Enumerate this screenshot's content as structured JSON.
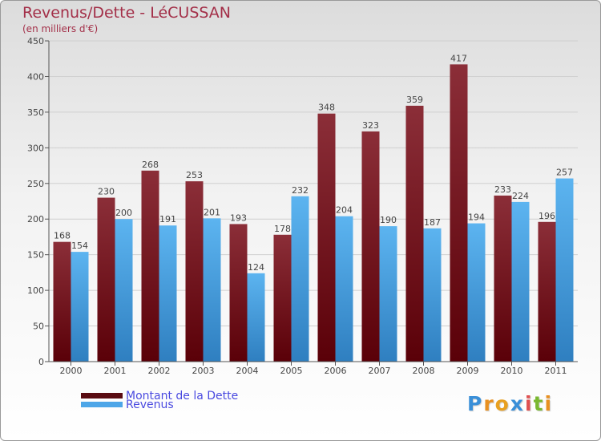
{
  "title": "Revenus/Dette - LéCUSSAN",
  "subtitle": "(en milliers d'€)",
  "chart_data": {
    "type": "bar",
    "title": "Revenus/Dette - LéCUSSAN",
    "subtitle": "(en milliers d'€)",
    "xlabel": "",
    "ylabel": "",
    "categories": [
      "2000",
      "2001",
      "2002",
      "2003",
      "2004",
      "2005",
      "2006",
      "2007",
      "2008",
      "2009",
      "2010",
      "2011"
    ],
    "series": [
      {
        "name": "Montant de la Dette",
        "color": "#7a1f28",
        "values": [
          168,
          230,
          268,
          253,
          193,
          178,
          348,
          323,
          359,
          417,
          233,
          196
        ]
      },
      {
        "name": "Revenus",
        "color": "#4da6e8",
        "values": [
          154,
          200,
          191,
          201,
          124,
          232,
          204,
          190,
          187,
          194,
          224,
          257
        ]
      }
    ],
    "ylim": [
      0,
      450
    ],
    "yticks": [
      0,
      50,
      100,
      150,
      200,
      250,
      300,
      350,
      400,
      450
    ],
    "grid": true,
    "legend_position": "bottom-left"
  },
  "legend": {
    "items": [
      {
        "label": "Montant de la Dette",
        "color": "#5a0c12"
      },
      {
        "label": "Revenus",
        "color": "#4da6e8"
      }
    ]
  },
  "logo": {
    "letters": [
      "P",
      "r",
      "o",
      "x",
      "i",
      "t",
      "i"
    ],
    "colors": [
      "#3a8fd8",
      "#e89020",
      "#e8a020",
      "#3a8fd8",
      "#e05050",
      "#7ab830",
      "#e89020"
    ]
  }
}
